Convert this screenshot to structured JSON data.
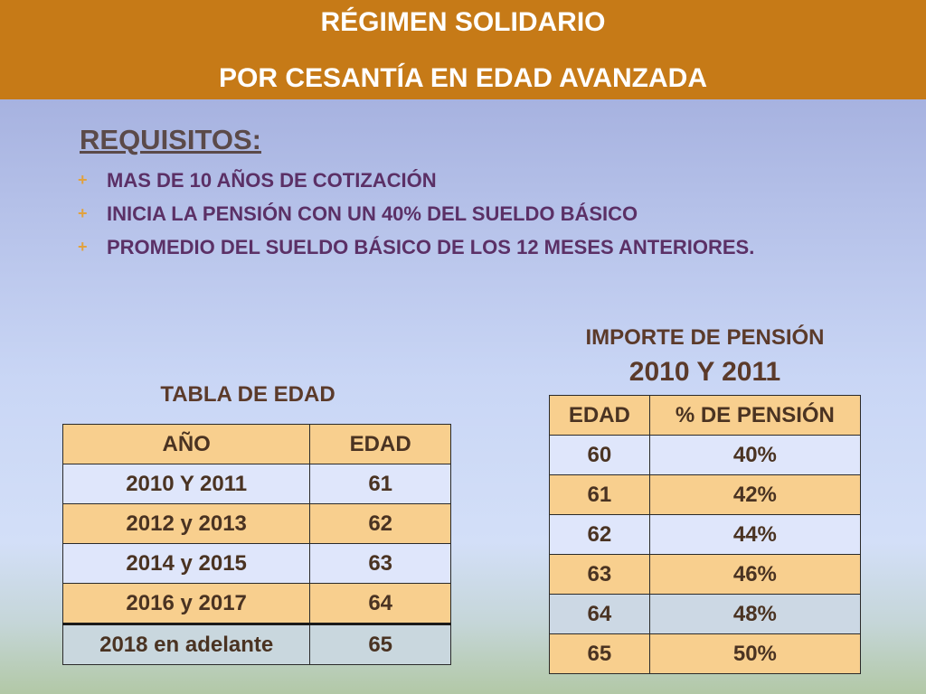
{
  "header": {
    "title_line1": "RÉGIMEN SOLIDARIO",
    "title_line2": "POR  CESANTÍA EN EDAD AVANZADA"
  },
  "requisitos": {
    "heading": "REQUISITOS:",
    "bullet_symbol": "+",
    "items": [
      "MAS DE 10 AÑOS DE COTIZACIÓN",
      "INICIA LA PENSIÓN CON UN 40% DEL SUELDO BÁSICO",
      "PROMEDIO DEL SUELDO BÁSICO DE LOS 12 MESES ANTERIORES."
    ]
  },
  "tabla_edad": {
    "caption": "TABLA DE EDAD",
    "headers": [
      "AÑO",
      "EDAD"
    ],
    "rows": [
      [
        "2010  Y 2011",
        "61"
      ],
      [
        "2012 y 2013",
        "62"
      ],
      [
        "2014 y 2015",
        "63"
      ],
      [
        "2016 y 2017",
        "64"
      ],
      [
        "2018 en adelante",
        "65"
      ]
    ]
  },
  "tabla_pension": {
    "caption_line1": "IMPORTE DE PENSIÓN",
    "caption_line2": "2010 Y 2011",
    "headers": [
      "EDAD",
      "% DE PENSIÓN"
    ],
    "rows": [
      [
        "60",
        "40%"
      ],
      [
        "61",
        "42%"
      ],
      [
        "62",
        "44%"
      ],
      [
        "63",
        "46%"
      ],
      [
        "64",
        "48%"
      ],
      [
        "65",
        "50%"
      ]
    ]
  },
  "colors": {
    "header_bg": "#c67a17",
    "table_tan": "#f8cf8e",
    "table_light": "#dfe6fb",
    "bullet": "#e2a23e"
  }
}
